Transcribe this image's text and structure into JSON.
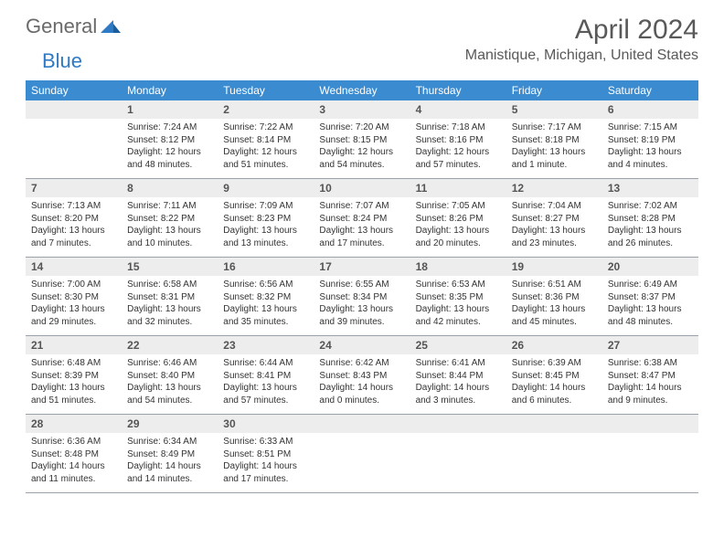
{
  "logo": {
    "general": "General",
    "blue": "Blue"
  },
  "title": "April 2024",
  "location": "Manistique, Michigan, United States",
  "colors": {
    "header_bg": "#3b8bd0",
    "header_text": "#ffffff",
    "daynum_bg": "#ededed",
    "daynum_text": "#555555",
    "body_text": "#333333",
    "title_text": "#595959",
    "logo_gray": "#6a6a6a",
    "logo_blue": "#2f7ac4",
    "rule": "#9aa3ab"
  },
  "weekdays": [
    "Sunday",
    "Monday",
    "Tuesday",
    "Wednesday",
    "Thursday",
    "Friday",
    "Saturday"
  ],
  "weeks": [
    [
      null,
      {
        "n": "1",
        "sr": "Sunrise: 7:24 AM",
        "ss": "Sunset: 8:12 PM",
        "dl1": "Daylight: 12 hours",
        "dl2": "and 48 minutes."
      },
      {
        "n": "2",
        "sr": "Sunrise: 7:22 AM",
        "ss": "Sunset: 8:14 PM",
        "dl1": "Daylight: 12 hours",
        "dl2": "and 51 minutes."
      },
      {
        "n": "3",
        "sr": "Sunrise: 7:20 AM",
        "ss": "Sunset: 8:15 PM",
        "dl1": "Daylight: 12 hours",
        "dl2": "and 54 minutes."
      },
      {
        "n": "4",
        "sr": "Sunrise: 7:18 AM",
        "ss": "Sunset: 8:16 PM",
        "dl1": "Daylight: 12 hours",
        "dl2": "and 57 minutes."
      },
      {
        "n": "5",
        "sr": "Sunrise: 7:17 AM",
        "ss": "Sunset: 8:18 PM",
        "dl1": "Daylight: 13 hours",
        "dl2": "and 1 minute."
      },
      {
        "n": "6",
        "sr": "Sunrise: 7:15 AM",
        "ss": "Sunset: 8:19 PM",
        "dl1": "Daylight: 13 hours",
        "dl2": "and 4 minutes."
      }
    ],
    [
      {
        "n": "7",
        "sr": "Sunrise: 7:13 AM",
        "ss": "Sunset: 8:20 PM",
        "dl1": "Daylight: 13 hours",
        "dl2": "and 7 minutes."
      },
      {
        "n": "8",
        "sr": "Sunrise: 7:11 AM",
        "ss": "Sunset: 8:22 PM",
        "dl1": "Daylight: 13 hours",
        "dl2": "and 10 minutes."
      },
      {
        "n": "9",
        "sr": "Sunrise: 7:09 AM",
        "ss": "Sunset: 8:23 PM",
        "dl1": "Daylight: 13 hours",
        "dl2": "and 13 minutes."
      },
      {
        "n": "10",
        "sr": "Sunrise: 7:07 AM",
        "ss": "Sunset: 8:24 PM",
        "dl1": "Daylight: 13 hours",
        "dl2": "and 17 minutes."
      },
      {
        "n": "11",
        "sr": "Sunrise: 7:05 AM",
        "ss": "Sunset: 8:26 PM",
        "dl1": "Daylight: 13 hours",
        "dl2": "and 20 minutes."
      },
      {
        "n": "12",
        "sr": "Sunrise: 7:04 AM",
        "ss": "Sunset: 8:27 PM",
        "dl1": "Daylight: 13 hours",
        "dl2": "and 23 minutes."
      },
      {
        "n": "13",
        "sr": "Sunrise: 7:02 AM",
        "ss": "Sunset: 8:28 PM",
        "dl1": "Daylight: 13 hours",
        "dl2": "and 26 minutes."
      }
    ],
    [
      {
        "n": "14",
        "sr": "Sunrise: 7:00 AM",
        "ss": "Sunset: 8:30 PM",
        "dl1": "Daylight: 13 hours",
        "dl2": "and 29 minutes."
      },
      {
        "n": "15",
        "sr": "Sunrise: 6:58 AM",
        "ss": "Sunset: 8:31 PM",
        "dl1": "Daylight: 13 hours",
        "dl2": "and 32 minutes."
      },
      {
        "n": "16",
        "sr": "Sunrise: 6:56 AM",
        "ss": "Sunset: 8:32 PM",
        "dl1": "Daylight: 13 hours",
        "dl2": "and 35 minutes."
      },
      {
        "n": "17",
        "sr": "Sunrise: 6:55 AM",
        "ss": "Sunset: 8:34 PM",
        "dl1": "Daylight: 13 hours",
        "dl2": "and 39 minutes."
      },
      {
        "n": "18",
        "sr": "Sunrise: 6:53 AM",
        "ss": "Sunset: 8:35 PM",
        "dl1": "Daylight: 13 hours",
        "dl2": "and 42 minutes."
      },
      {
        "n": "19",
        "sr": "Sunrise: 6:51 AM",
        "ss": "Sunset: 8:36 PM",
        "dl1": "Daylight: 13 hours",
        "dl2": "and 45 minutes."
      },
      {
        "n": "20",
        "sr": "Sunrise: 6:49 AM",
        "ss": "Sunset: 8:37 PM",
        "dl1": "Daylight: 13 hours",
        "dl2": "and 48 minutes."
      }
    ],
    [
      {
        "n": "21",
        "sr": "Sunrise: 6:48 AM",
        "ss": "Sunset: 8:39 PM",
        "dl1": "Daylight: 13 hours",
        "dl2": "and 51 minutes."
      },
      {
        "n": "22",
        "sr": "Sunrise: 6:46 AM",
        "ss": "Sunset: 8:40 PM",
        "dl1": "Daylight: 13 hours",
        "dl2": "and 54 minutes."
      },
      {
        "n": "23",
        "sr": "Sunrise: 6:44 AM",
        "ss": "Sunset: 8:41 PM",
        "dl1": "Daylight: 13 hours",
        "dl2": "and 57 minutes."
      },
      {
        "n": "24",
        "sr": "Sunrise: 6:42 AM",
        "ss": "Sunset: 8:43 PM",
        "dl1": "Daylight: 14 hours",
        "dl2": "and 0 minutes."
      },
      {
        "n": "25",
        "sr": "Sunrise: 6:41 AM",
        "ss": "Sunset: 8:44 PM",
        "dl1": "Daylight: 14 hours",
        "dl2": "and 3 minutes."
      },
      {
        "n": "26",
        "sr": "Sunrise: 6:39 AM",
        "ss": "Sunset: 8:45 PM",
        "dl1": "Daylight: 14 hours",
        "dl2": "and 6 minutes."
      },
      {
        "n": "27",
        "sr": "Sunrise: 6:38 AM",
        "ss": "Sunset: 8:47 PM",
        "dl1": "Daylight: 14 hours",
        "dl2": "and 9 minutes."
      }
    ],
    [
      {
        "n": "28",
        "sr": "Sunrise: 6:36 AM",
        "ss": "Sunset: 8:48 PM",
        "dl1": "Daylight: 14 hours",
        "dl2": "and 11 minutes."
      },
      {
        "n": "29",
        "sr": "Sunrise: 6:34 AM",
        "ss": "Sunset: 8:49 PM",
        "dl1": "Daylight: 14 hours",
        "dl2": "and 14 minutes."
      },
      {
        "n": "30",
        "sr": "Sunrise: 6:33 AM",
        "ss": "Sunset: 8:51 PM",
        "dl1": "Daylight: 14 hours",
        "dl2": "and 17 minutes."
      },
      null,
      null,
      null,
      null
    ]
  ]
}
